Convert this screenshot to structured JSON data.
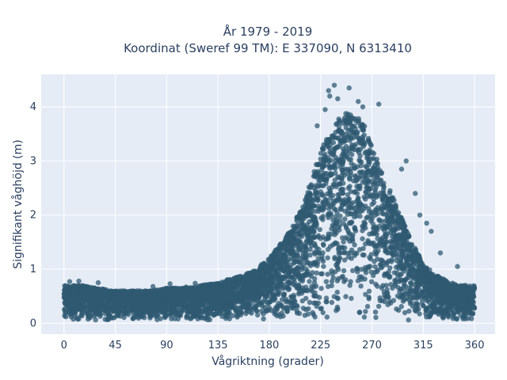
{
  "chart_data": {
    "type": "scatter",
    "title_line1": "År 1979 - 2019",
    "title_line2": "Koordinat (Sweref 99 TM): E 337090, N 6313410",
    "xlabel": "Vågriktning (grader)",
    "ylabel": "Signifikant våghöjd (m)",
    "xlim": [
      -20,
      378
    ],
    "ylim": [
      -0.2,
      4.6
    ],
    "x_ticks": [
      0,
      45,
      90,
      135,
      180,
      225,
      270,
      315,
      360
    ],
    "y_ticks": [
      0,
      1,
      2,
      3,
      4
    ],
    "grid": true,
    "point_color": "#2f5a72",
    "plot_background": "#e5ecf6",
    "envelope": {
      "direction": [
        0,
        15,
        30,
        45,
        60,
        75,
        90,
        105,
        120,
        135,
        150,
        165,
        180,
        195,
        210,
        225,
        235,
        245,
        255,
        265,
        275,
        285,
        295,
        305,
        315,
        325,
        335,
        345,
        355,
        360
      ],
      "max_height": [
        0.7,
        0.7,
        0.65,
        0.6,
        0.6,
        0.6,
        0.65,
        0.65,
        0.7,
        0.75,
        0.85,
        0.95,
        1.2,
        1.6,
        2.2,
        3.2,
        3.6,
        3.9,
        3.9,
        3.6,
        3.0,
        2.5,
        2.0,
        1.5,
        1.1,
        0.9,
        0.8,
        0.7,
        0.7,
        0.7
      ],
      "min_height": [
        0.05,
        0.05,
        0.05,
        0.05,
        0.05,
        0.05,
        0.05,
        0.05,
        0.05,
        0.05,
        0.05,
        0.05,
        0.05,
        0.05,
        0.05,
        0.05,
        0.05,
        0.05,
        0.05,
        0.05,
        0.05,
        0.05,
        0.05,
        0.05,
        0.05,
        0.05,
        0.05,
        0.05,
        0.05,
        0.05
      ]
    },
    "outliers": [
      {
        "x": 237,
        "y": 4.4
      },
      {
        "x": 250,
        "y": 4.35
      },
      {
        "x": 232,
        "y": 4.3
      },
      {
        "x": 233,
        "y": 4.2
      },
      {
        "x": 240,
        "y": 4.15
      },
      {
        "x": 258,
        "y": 4.1
      },
      {
        "x": 276,
        "y": 4.05
      },
      {
        "x": 262,
        "y": 4.0
      },
      {
        "x": 229,
        "y": 3.95
      },
      {
        "x": 222,
        "y": 3.65
      },
      {
        "x": 300,
        "y": 3.0
      },
      {
        "x": 296,
        "y": 2.85
      },
      {
        "x": 308,
        "y": 2.4
      },
      {
        "x": 318,
        "y": 1.85
      },
      {
        "x": 322,
        "y": 1.7
      },
      {
        "x": 330,
        "y": 1.3
      },
      {
        "x": 345,
        "y": 1.05
      },
      {
        "x": 312,
        "y": 2.0
      },
      {
        "x": 5,
        "y": 0.77
      },
      {
        "x": 13,
        "y": 0.78
      },
      {
        "x": 30,
        "y": 0.75
      },
      {
        "x": 52,
        "y": 0.6
      },
      {
        "x": 78,
        "y": 0.68
      },
      {
        "x": 93,
        "y": 0.73
      },
      {
        "x": 107,
        "y": 0.67
      },
      {
        "x": 115,
        "y": 0.74
      },
      {
        "x": 150,
        "y": 0.8
      },
      {
        "x": 205,
        "y": 1.95
      },
      {
        "x": 198,
        "y": 1.6
      },
      {
        "x": 192,
        "y": 1.45
      }
    ]
  }
}
